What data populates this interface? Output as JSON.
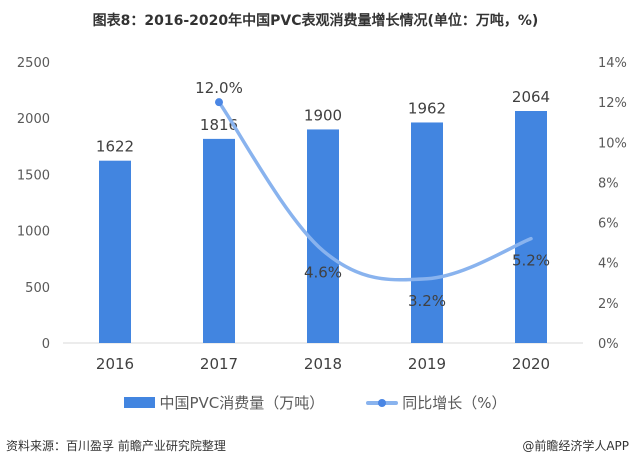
{
  "title": "图表8：2016-2020年中国PVC表观消费量增长情况(单位：万吨，%)",
  "chart_data": {
    "type": "bar+line",
    "categories": [
      "2016",
      "2017",
      "2018",
      "2019",
      "2020"
    ],
    "series": [
      {
        "name": "中国PVC消费量（万吨）",
        "type": "bar",
        "axis": "left",
        "values": [
          1622,
          1816,
          1900,
          1962,
          2064
        ],
        "color": "#4285e0"
      },
      {
        "name": "同比增长（%）",
        "type": "line",
        "axis": "right",
        "values": [
          null,
          12.0,
          4.6,
          3.2,
          5.2
        ],
        "labels": [
          "",
          "12.0%",
          "4.6%",
          "3.2%",
          "5.2%"
        ],
        "color": "#89b3ee"
      }
    ],
    "y_left": {
      "range": [
        0,
        2500
      ],
      "ticks": [
        "0",
        "500",
        "1000",
        "1500",
        "2000",
        "2500"
      ]
    },
    "y_right": {
      "range": [
        0,
        14
      ],
      "ticks": [
        "0%",
        "2%",
        "4%",
        "6%",
        "8%",
        "10%",
        "12%",
        "14%"
      ]
    },
    "grid": false,
    "legend": "bottom"
  },
  "source": "资料来源：百川盈孚 前瞻产业研究院整理",
  "credit": "@前瞻经济学人APP"
}
